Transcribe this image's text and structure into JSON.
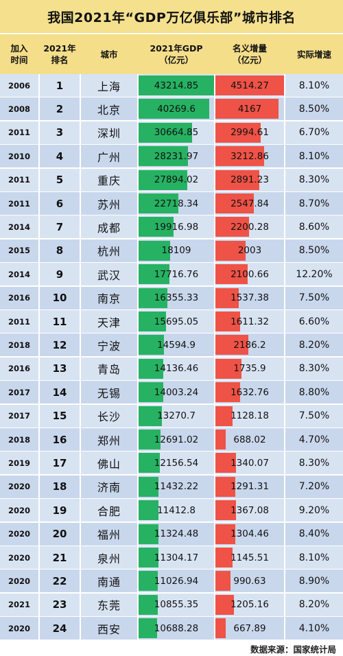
{
  "title": "我国2021年“GDP万亿俱乐部”城市排名",
  "source": "数据来源：国家统计局",
  "colors": {
    "header_bg": "#f4de8a",
    "gdp_bar": "#26b262",
    "increase_bar": "#ef5246",
    "row_bg": "#d8e3f2"
  },
  "chart_data": {
    "type": "table",
    "columns": [
      "加入时间",
      "2021年排名",
      "城市",
      "2021年GDP（亿元）",
      "名义增量（亿元）",
      "实际增速"
    ],
    "header_lines": {
      "join": [
        "加入",
        "时间"
      ],
      "rank": [
        "2021年",
        "排名"
      ],
      "city": [
        "城市"
      ],
      "gdp": [
        "2021年GDP",
        "（亿元）"
      ],
      "increase": [
        "名义增量",
        "（亿元）"
      ],
      "rate": [
        "实际增速"
      ]
    },
    "gdp_max": 43214.85,
    "increase_max": 4514.27,
    "rows": [
      {
        "join": "2006",
        "rank": "1",
        "city": "上海",
        "gdp": 43214.85,
        "gdp_label": "43214.85",
        "increase": 4514.27,
        "increase_label": "4514.27",
        "rate": "8.10%"
      },
      {
        "join": "2008",
        "rank": "2",
        "city": "北京",
        "gdp": 40269.6,
        "gdp_label": "40269.6",
        "increase": 4167,
        "increase_label": "4167",
        "rate": "8.50%"
      },
      {
        "join": "2011",
        "rank": "3",
        "city": "深圳",
        "gdp": 30664.85,
        "gdp_label": "30664.85",
        "increase": 2994.61,
        "increase_label": "2994.61",
        "rate": "6.70%"
      },
      {
        "join": "2010",
        "rank": "4",
        "city": "广州",
        "gdp": 28231.97,
        "gdp_label": "28231.97",
        "increase": 3212.86,
        "increase_label": "3212.86",
        "rate": "8.10%"
      },
      {
        "join": "2011",
        "rank": "5",
        "city": "重庆",
        "gdp": 27894.02,
        "gdp_label": "27894.02",
        "increase": 2891.23,
        "increase_label": "2891.23",
        "rate": "8.30%"
      },
      {
        "join": "2011",
        "rank": "6",
        "city": "苏州",
        "gdp": 22718.34,
        "gdp_label": "22718.34",
        "increase": 2547.84,
        "increase_label": "2547.84",
        "rate": "8.70%"
      },
      {
        "join": "2014",
        "rank": "7",
        "city": "成都",
        "gdp": 19916.98,
        "gdp_label": "19916.98",
        "increase": 2200.28,
        "increase_label": "2200.28",
        "rate": "8.60%"
      },
      {
        "join": "2015",
        "rank": "8",
        "city": "杭州",
        "gdp": 18109,
        "gdp_label": "18109",
        "increase": 2003,
        "increase_label": "2003",
        "rate": "8.50%"
      },
      {
        "join": "2014",
        "rank": "9",
        "city": "武汉",
        "gdp": 17716.76,
        "gdp_label": "17716.76",
        "increase": 2100.66,
        "increase_label": "2100.66",
        "rate": "12.20%"
      },
      {
        "join": "2016",
        "rank": "10",
        "city": "南京",
        "gdp": 16355.33,
        "gdp_label": "16355.33",
        "increase": 1537.38,
        "increase_label": "1537.38",
        "rate": "7.50%"
      },
      {
        "join": "2011",
        "rank": "11",
        "city": "天津",
        "gdp": 15695.05,
        "gdp_label": "15695.05",
        "increase": 1611.32,
        "increase_label": "1611.32",
        "rate": "6.60%"
      },
      {
        "join": "2018",
        "rank": "12",
        "city": "宁波",
        "gdp": 14594.9,
        "gdp_label": "14594.9",
        "increase": 2186.2,
        "increase_label": "2186.2",
        "rate": "8.20%"
      },
      {
        "join": "2016",
        "rank": "13",
        "city": "青岛",
        "gdp": 14136.46,
        "gdp_label": "14136.46",
        "increase": 1735.9,
        "increase_label": "1735.9",
        "rate": "8.30%"
      },
      {
        "join": "2017",
        "rank": "14",
        "city": "无锡",
        "gdp": 14003.24,
        "gdp_label": "14003.24",
        "increase": 1632.76,
        "increase_label": "1632.76",
        "rate": "8.80%"
      },
      {
        "join": "2017",
        "rank": "15",
        "city": "长沙",
        "gdp": 13270.7,
        "gdp_label": "13270.7",
        "increase": 1128.18,
        "increase_label": "1128.18",
        "rate": "7.50%"
      },
      {
        "join": "2018",
        "rank": "16",
        "city": "郑州",
        "gdp": 12691.02,
        "gdp_label": "12691.02",
        "increase": 688.02,
        "increase_label": "688.02",
        "rate": "4.70%"
      },
      {
        "join": "2019",
        "rank": "17",
        "city": "佛山",
        "gdp": 12156.54,
        "gdp_label": "12156.54",
        "increase": 1340.07,
        "increase_label": "1340.07",
        "rate": "8.30%"
      },
      {
        "join": "2020",
        "rank": "18",
        "city": "济南",
        "gdp": 11432.22,
        "gdp_label": "11432.22",
        "increase": 1291.31,
        "increase_label": "1291.31",
        "rate": "7.20%"
      },
      {
        "join": "2020",
        "rank": "19",
        "city": "合肥",
        "gdp": 11412.8,
        "gdp_label": "11412.8",
        "increase": 1367.08,
        "increase_label": "1367.08",
        "rate": "9.20%"
      },
      {
        "join": "2020",
        "rank": "20",
        "city": "福州",
        "gdp": 11324.48,
        "gdp_label": "11324.48",
        "increase": 1304.46,
        "increase_label": "1304.46",
        "rate": "8.40%"
      },
      {
        "join": "2020",
        "rank": "21",
        "city": "泉州",
        "gdp": 11304.17,
        "gdp_label": "11304.17",
        "increase": 1145.51,
        "increase_label": "1145.51",
        "rate": "8.10%"
      },
      {
        "join": "2020",
        "rank": "22",
        "city": "南通",
        "gdp": 11026.94,
        "gdp_label": "11026.94",
        "increase": 990.63,
        "increase_label": "990.63",
        "rate": "8.90%"
      },
      {
        "join": "2021",
        "rank": "23",
        "city": "东莞",
        "gdp": 10855.35,
        "gdp_label": "10855.35",
        "increase": 1205.16,
        "increase_label": "1205.16",
        "rate": "8.20%"
      },
      {
        "join": "2020",
        "rank": "24",
        "city": "西安",
        "gdp": 10688.28,
        "gdp_label": "10688.28",
        "increase": 667.89,
        "increase_label": "667.89",
        "rate": "4.10%"
      }
    ]
  }
}
